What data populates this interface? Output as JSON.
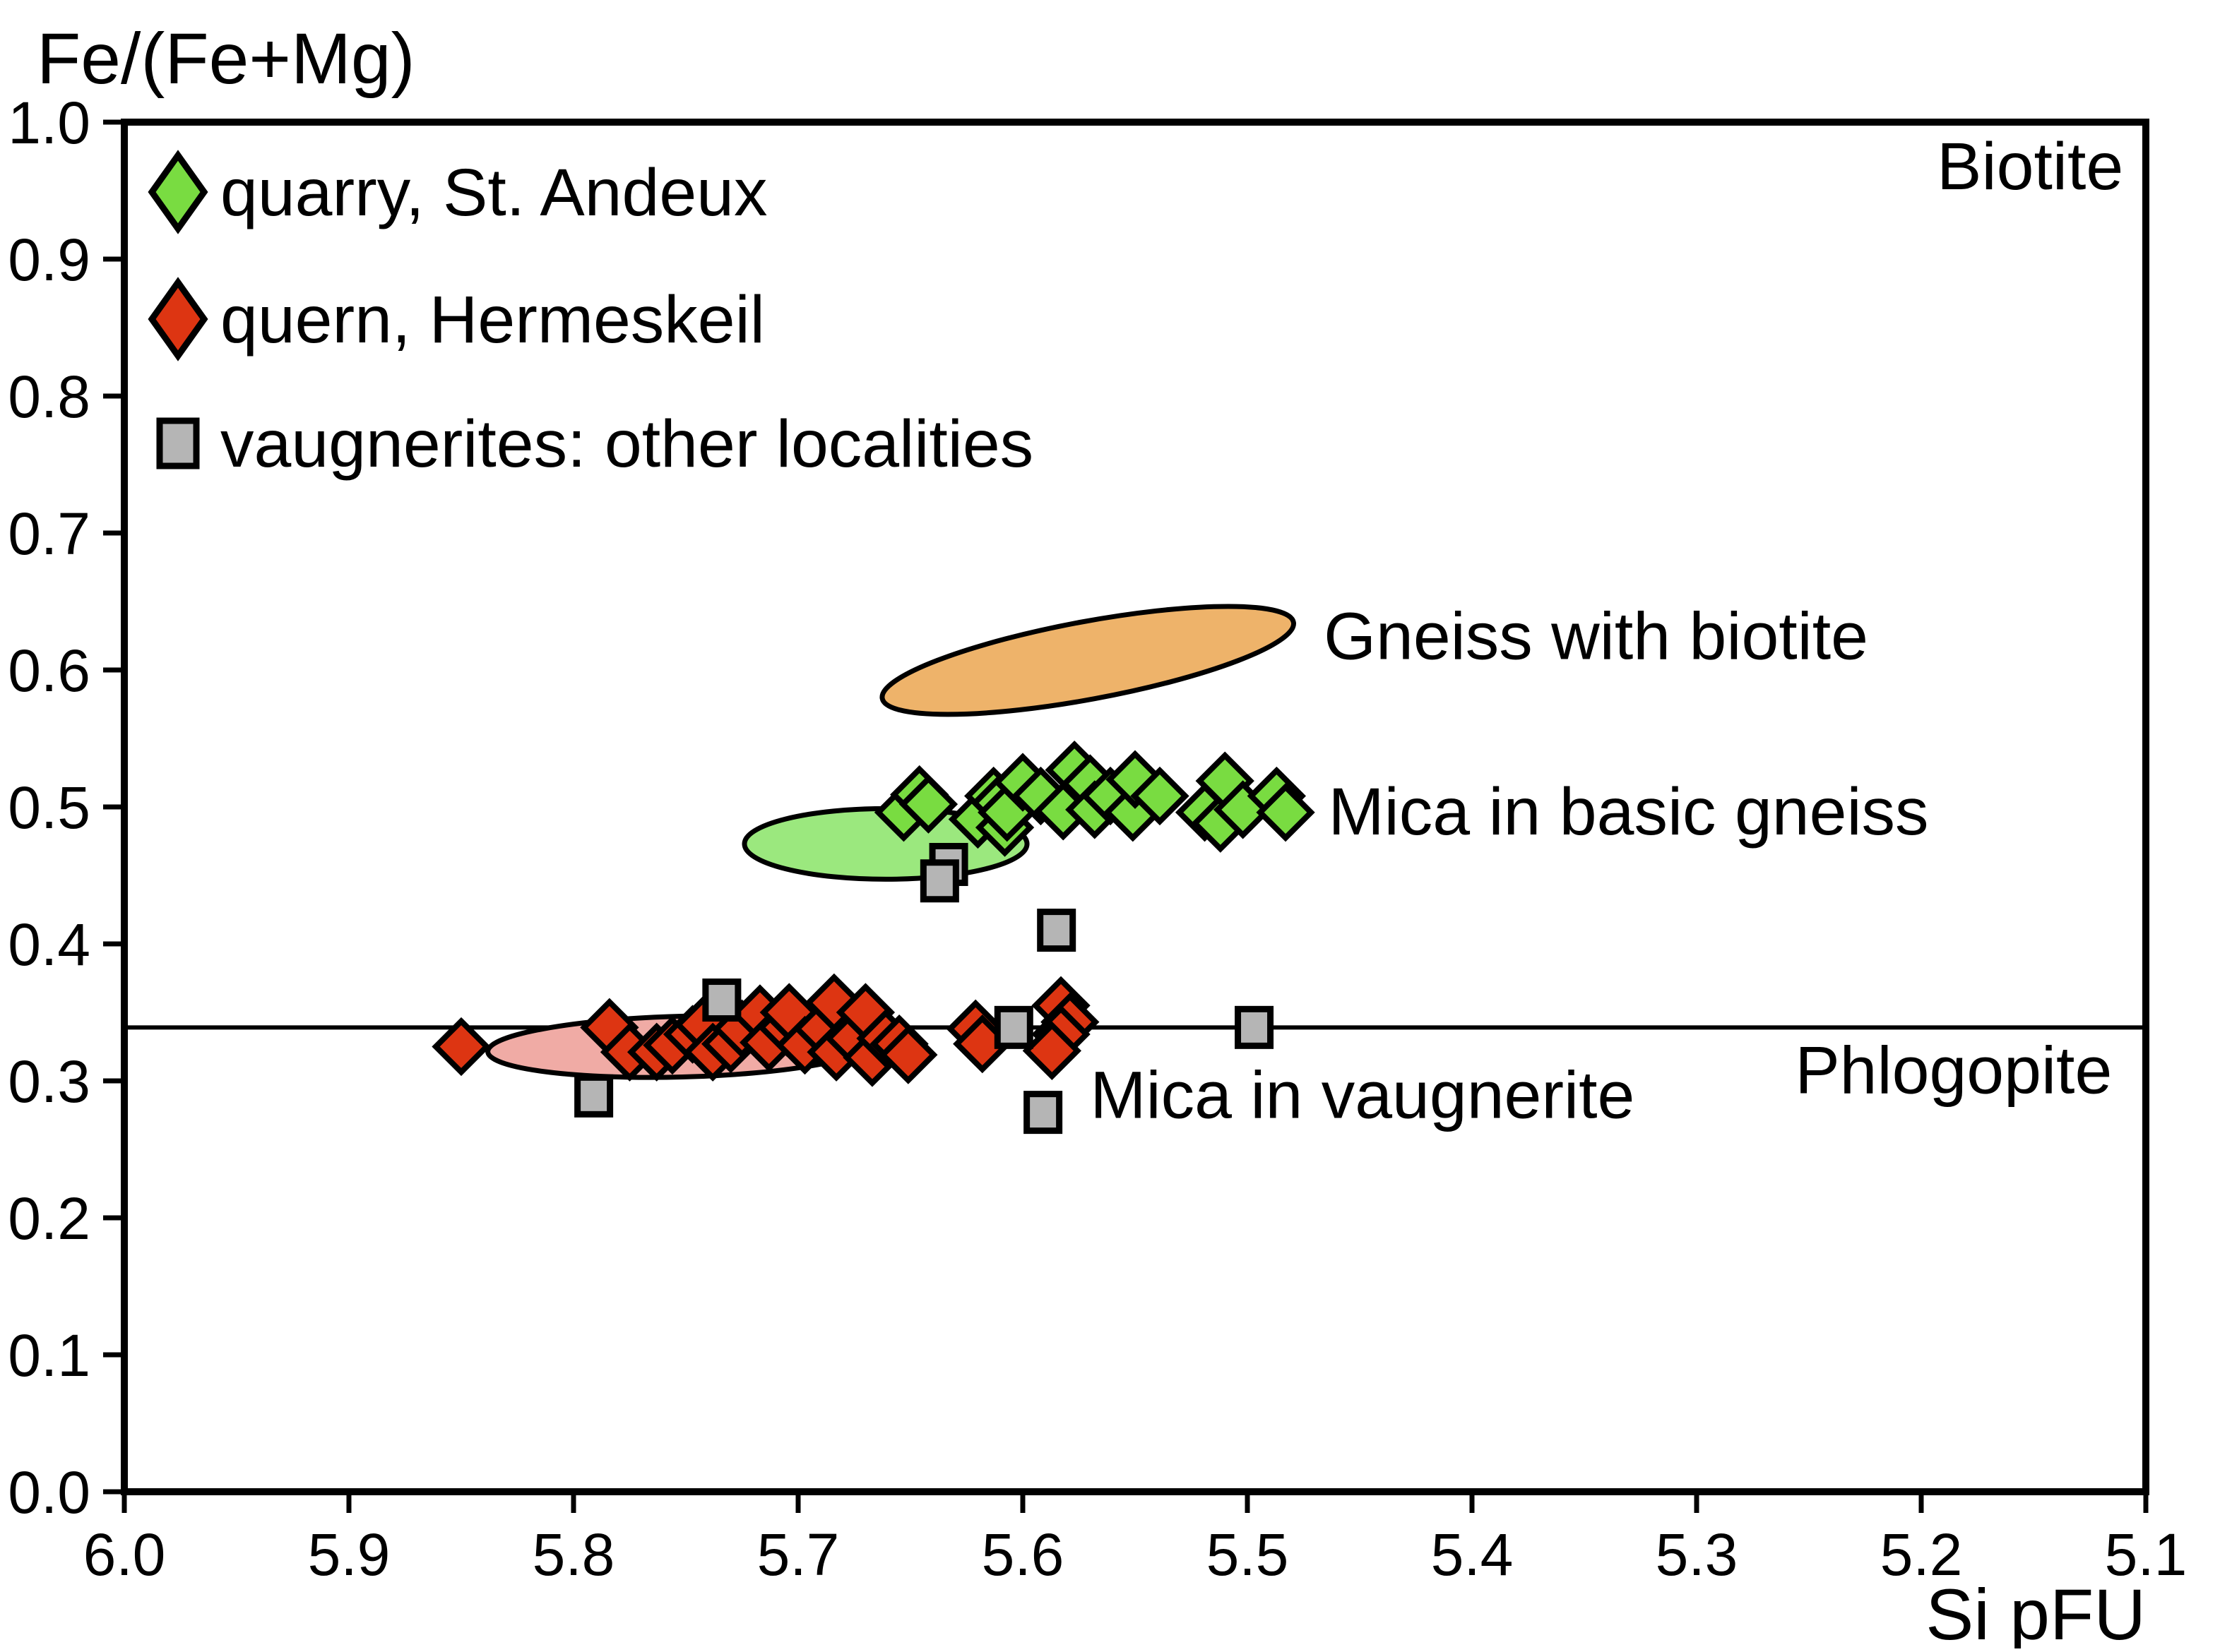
{
  "chart_data": {
    "type": "scatter",
    "y_axis_title": "Fe/(Fe+Mg)",
    "x_axis_title": "Si pFU",
    "x_range": [
      6.0,
      5.1
    ],
    "x_reversed": true,
    "y_range": [
      0.0,
      1.0
    ],
    "x_ticks": [
      6.0,
      5.9,
      5.8,
      5.7,
      5.6,
      5.5,
      5.4,
      5.3,
      5.2,
      5.1
    ],
    "x_tick_labels": [
      "6.0",
      "5.9",
      "5.8",
      "5.7",
      "5.6",
      "5.5",
      "5.4",
      "5.3",
      "5.2",
      "5.1"
    ],
    "y_ticks": [
      0.0,
      0.1,
      0.2,
      0.3,
      0.4,
      0.5,
      0.6,
      0.7,
      0.8,
      0.9,
      1.0
    ],
    "y_tick_labels": [
      "0.0",
      "0.1",
      "0.2",
      "0.3",
      "0.4",
      "0.5",
      "0.6",
      "0.7",
      "0.8",
      "0.9",
      "1.0"
    ],
    "grid": false,
    "reference_line": {
      "y": 0.339,
      "color": "#000000"
    },
    "series": [
      {
        "name": "quarry, St. Andeux",
        "marker": "diamond",
        "fill": "#79dc41",
        "stroke": "#000000",
        "points": [
          [
            5.653,
            0.496
          ],
          [
            5.646,
            0.509
          ],
          [
            5.642,
            0.502
          ],
          [
            5.62,
            0.491
          ],
          [
            5.613,
            0.508
          ],
          [
            5.61,
            0.503
          ],
          [
            5.608,
            0.485
          ],
          [
            5.607,
            0.496
          ],
          [
            5.6,
            0.518
          ],
          [
            5.592,
            0.508
          ],
          [
            5.582,
            0.497
          ],
          [
            5.577,
            0.527
          ],
          [
            5.57,
            0.517
          ],
          [
            5.568,
            0.498
          ],
          [
            5.561,
            0.508
          ],
          [
            5.551,
            0.496
          ],
          [
            5.55,
            0.52
          ],
          [
            5.539,
            0.508
          ],
          [
            5.519,
            0.496
          ],
          [
            5.512,
            0.488
          ],
          [
            5.51,
            0.519
          ],
          [
            5.502,
            0.498
          ],
          [
            5.487,
            0.508
          ],
          [
            5.483,
            0.496
          ]
        ]
      },
      {
        "name": "quern, Hermeskeil",
        "marker": "diamond",
        "fill": "#dd3512",
        "stroke": "#000000",
        "points": [
          [
            5.85,
            0.325
          ],
          [
            5.784,
            0.339
          ],
          [
            5.775,
            0.321
          ],
          [
            5.763,
            0.321
          ],
          [
            5.756,
            0.326
          ],
          [
            5.747,
            0.334
          ],
          [
            5.742,
            0.341
          ],
          [
            5.738,
            0.321
          ],
          [
            5.73,
            0.327
          ],
          [
            5.725,
            0.338
          ],
          [
            5.717,
            0.349
          ],
          [
            5.713,
            0.328
          ],
          [
            5.705,
            0.339
          ],
          [
            5.704,
            0.35
          ],
          [
            5.697,
            0.326
          ],
          [
            5.689,
            0.338
          ],
          [
            5.684,
            0.357
          ],
          [
            5.683,
            0.321
          ],
          [
            5.675,
            0.331
          ],
          [
            5.67,
            0.35
          ],
          [
            5.667,
            0.317
          ],
          [
            5.661,
            0.331
          ],
          [
            5.655,
            0.327
          ],
          [
            5.651,
            0.319
          ],
          [
            5.621,
            0.338
          ],
          [
            5.618,
            0.327
          ],
          [
            5.583,
            0.355
          ],
          [
            5.579,
            0.343
          ],
          [
            5.583,
            0.334
          ],
          [
            5.587,
            0.322
          ]
        ]
      },
      {
        "name": "vaugnerites: other localities",
        "marker": "square",
        "fill": "#b5b5b5",
        "stroke": "#000000",
        "points": [
          [
            5.633,
            0.458
          ],
          [
            5.637,
            0.446
          ],
          [
            5.585,
            0.41
          ],
          [
            5.734,
            0.359
          ],
          [
            5.791,
            0.289
          ],
          [
            5.604,
            0.339
          ],
          [
            5.591,
            0.277
          ],
          [
            5.497,
            0.339
          ]
        ]
      }
    ],
    "regions": [
      {
        "label": "Gneiss with biotite",
        "fill": "#eeb36a",
        "stroke": "#000000",
        "cx": 5.571,
        "cy": 0.607,
        "rx": 0.0931,
        "ry": 0.0284,
        "rotation_deg": -10.5
      },
      {
        "label": "Mica in basic gneiss",
        "fill": "#9be87e",
        "stroke": "#000000",
        "cx": 5.661,
        "cy": 0.473,
        "rx": 0.0629,
        "ry": 0.0258,
        "rotation_deg": 0
      },
      {
        "label": "Mica in vaugnerite",
        "fill": "#f0aba5",
        "stroke": "#000000",
        "cx": 5.752,
        "cy": 0.325,
        "rx": 0.0862,
        "ry": 0.0222,
        "rotation_deg": -1.5
      }
    ],
    "annotations": [
      {
        "text": "Biotite",
        "x": 5.11,
        "y": 0.968,
        "anchor": "end"
      },
      {
        "text": "Phlogopite",
        "x": 5.115,
        "y": 0.308,
        "anchor": "end"
      },
      {
        "text": "Gneiss with biotite",
        "x": 5.466,
        "y": 0.625,
        "anchor": "start"
      },
      {
        "text": "Mica in basic gneiss",
        "x": 5.464,
        "y": 0.497,
        "anchor": "start"
      },
      {
        "text": "Mica in vaugnerite",
        "x": 5.57,
        "y": 0.29,
        "anchor": "start"
      }
    ],
    "legend": {
      "position": "top-left-inside",
      "items": [
        {
          "label": "quarry, St. Andeux",
          "marker": "diamond",
          "fill": "#79dc41"
        },
        {
          "label": "quern, Hermeskeil",
          "marker": "diamond",
          "fill": "#dd3512"
        },
        {
          "label": "vaugnerites: other localities",
          "marker": "square",
          "fill": "#b5b5b5"
        }
      ]
    },
    "colors": {
      "axis": "#000000",
      "background": "#ffffff"
    }
  }
}
